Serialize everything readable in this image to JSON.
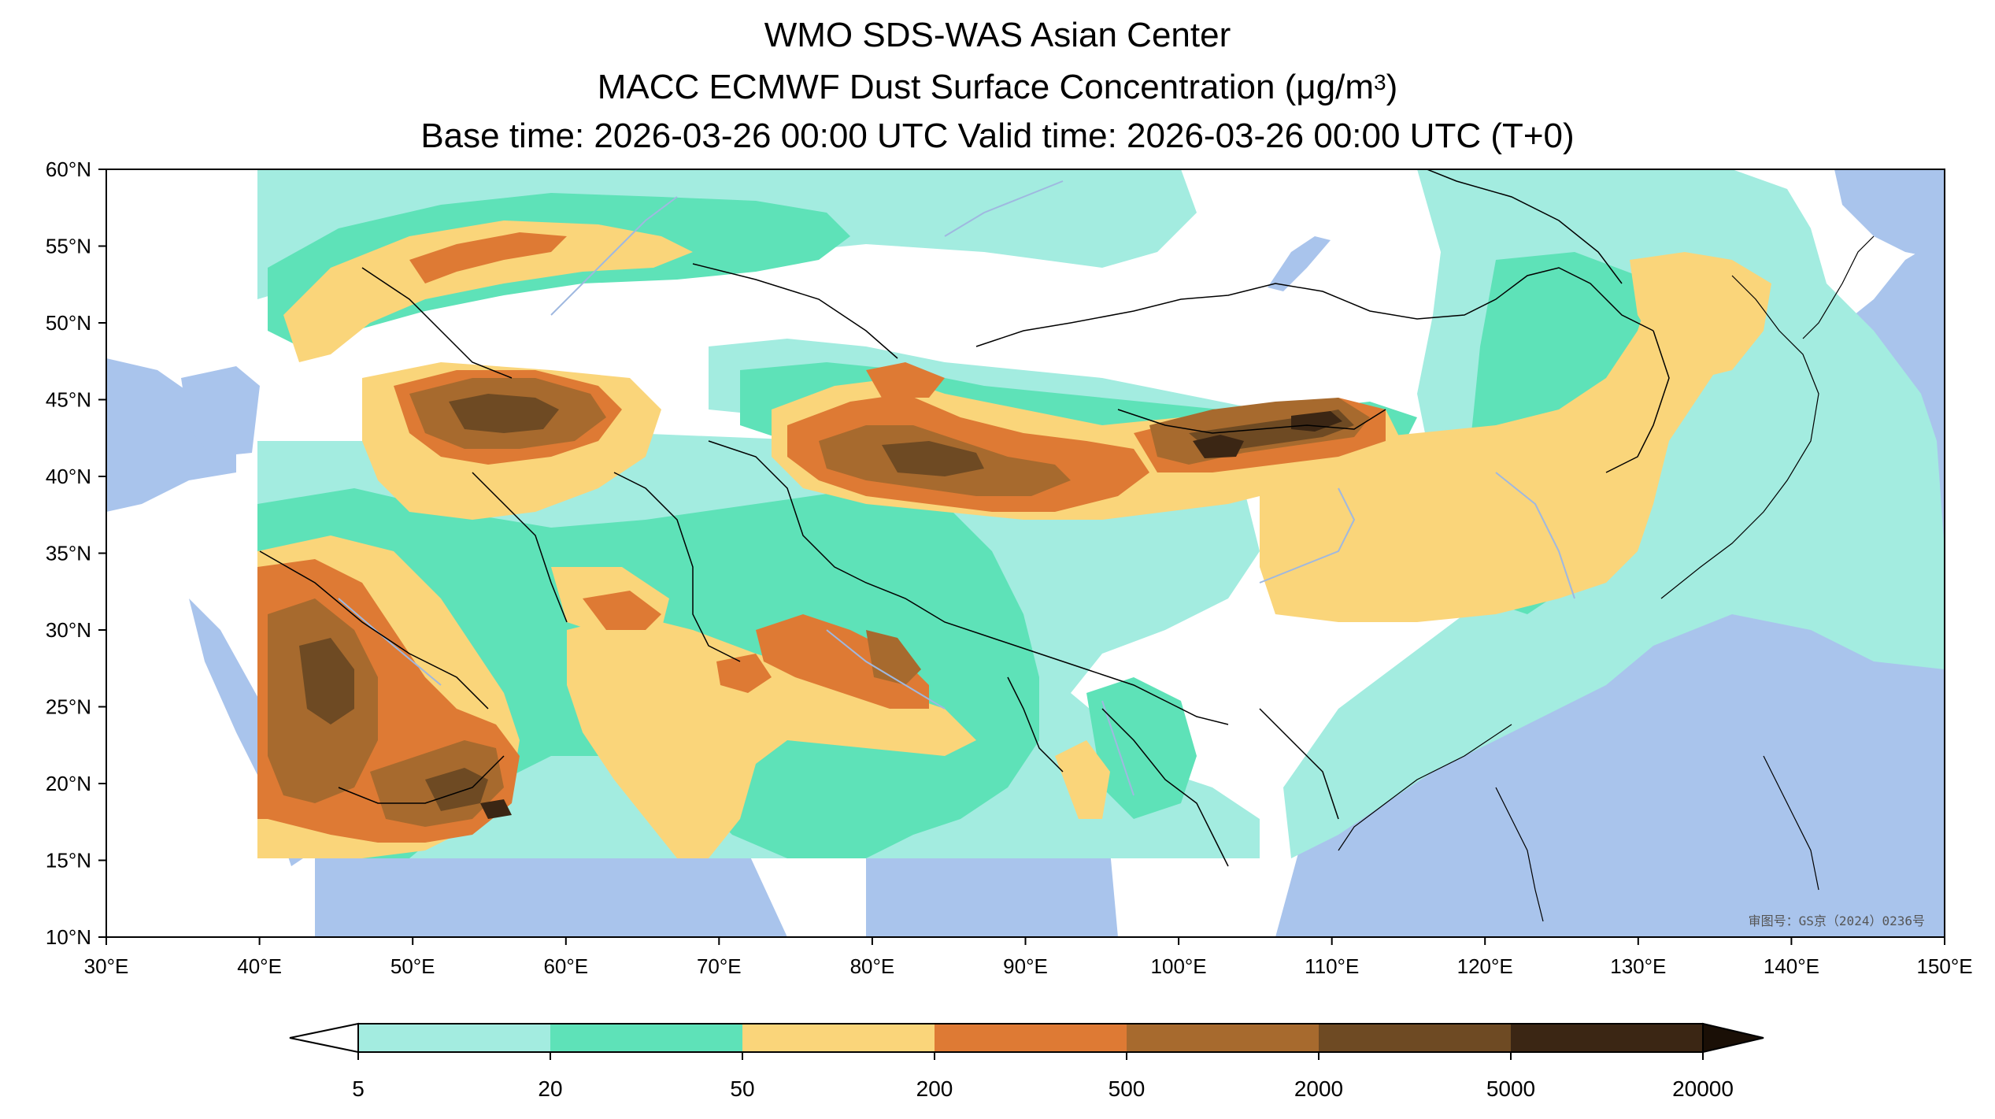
{
  "title": {
    "line1": "WMO SDS-WAS Asian Center",
    "line2_prefix": "MACC ECMWF Dust Surface Concentration (",
    "line2_unit_mu": "μ",
    "line2_unit": "g/m",
    "line2_sup": "3",
    "line2_suffix": ")",
    "line3": "Base time: 2026-03-26 00:00 UTC Valid time: 2026-03-26 00:00 UTC (T+0)"
  },
  "map": {
    "lon_range": [
      30,
      150
    ],
    "lat_range": [
      10,
      60
    ],
    "lon_ticks": [
      "30°E",
      "40°E",
      "50°E",
      "60°E",
      "70°E",
      "80°E",
      "90°E",
      "100°E",
      "110°E",
      "120°E",
      "130°E",
      "140°E",
      "150°E"
    ],
    "lat_ticks": [
      "60°N",
      "55°N",
      "50°N",
      "45°N",
      "40°N",
      "35°N",
      "30°N",
      "25°N",
      "20°N",
      "15°N",
      "10°N"
    ],
    "approval_number": "审图号：GS京（2024）0236号",
    "colors": {
      "sea": "#a9c4ec",
      "land": "#ffffff",
      "border": "#000000",
      "river": "#9fb8e0"
    }
  },
  "colorbar": {
    "labels": [
      "5",
      "20",
      "50",
      "200",
      "500",
      "2000",
      "5000",
      "20000"
    ],
    "colors": [
      "#a3ece0",
      "#5ee2b8",
      "#fad57a",
      "#de7a34",
      "#a76a2e",
      "#6e4a23",
      "#3b2614"
    ],
    "under_color": "#ffffff",
    "over_color": "#1a0f06",
    "extend": "both"
  }
}
